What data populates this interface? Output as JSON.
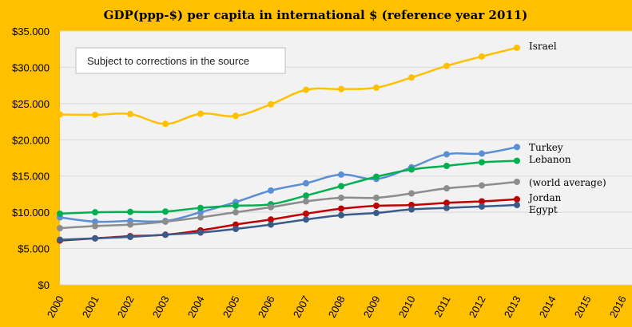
{
  "chart_data": {
    "type": "line",
    "title": "GDP(ppp-$) per capita in international $ (reference year 2011)",
    "annotation": "Subject to corrections  in the source",
    "x": [
      2000,
      2001,
      2002,
      2003,
      2004,
      2005,
      2006,
      2007,
      2008,
      2009,
      2010,
      2011,
      2012,
      2013
    ],
    "x_ticks": [
      "2000",
      "2001",
      "2002",
      "2003",
      "2004",
      "2005",
      "2006",
      "2007",
      "2008",
      "2009",
      "2010",
      "2011",
      "2012",
      "2013",
      "2014",
      "2015",
      "2016"
    ],
    "xlim": [
      2000,
      2016
    ],
    "ylim": [
      0,
      35000
    ],
    "y_ticks": [
      {
        "value": 0,
        "label": "$0"
      },
      {
        "value": 5000,
        "label": "$5.000"
      },
      {
        "value": 10000,
        "label": "$10.000"
      },
      {
        "value": 15000,
        "label": "$15.000"
      },
      {
        "value": 20000,
        "label": "$20.000"
      },
      {
        "value": 25000,
        "label": "$25.000"
      },
      {
        "value": 30000,
        "label": "$30.000"
      },
      {
        "value": 35000,
        "label": "$35.000"
      }
    ],
    "grid": "horizontal",
    "legend": "none",
    "series": [
      {
        "name": "Israel",
        "color": "#FFC000",
        "values": [
          23500,
          23450,
          23550,
          22200,
          23600,
          23300,
          24900,
          26900,
          27000,
          27200,
          28600,
          30200,
          31500,
          32700
        ]
      },
      {
        "name": "Turkey",
        "color": "#5B8FD5",
        "values": [
          9300,
          8700,
          8800,
          8800,
          10000,
          11400,
          13000,
          14000,
          15200,
          14600,
          16200,
          18000,
          18100,
          19000
        ]
      },
      {
        "name": "Lebanon",
        "color": "#00B050",
        "values": [
          9800,
          10000,
          10050,
          10100,
          10600,
          10900,
          11100,
          12300,
          13600,
          14900,
          15900,
          16400,
          16900,
          17100
        ]
      },
      {
        "name": "(world average)",
        "color": "#8C8C8C",
        "values": [
          7800,
          8100,
          8300,
          8700,
          9300,
          10000,
          10700,
          11500,
          12000,
          12000,
          12600,
          13300,
          13700,
          14200
        ]
      },
      {
        "name": "Jordan",
        "color": "#C00000",
        "values": [
          6100,
          6400,
          6700,
          6900,
          7500,
          8300,
          9000,
          9800,
          10500,
          10900,
          11000,
          11300,
          11500,
          11800
        ]
      },
      {
        "name": "Egypt",
        "color": "#3A5A8A",
        "values": [
          6200,
          6400,
          6600,
          6900,
          7200,
          7700,
          8300,
          9000,
          9600,
          9900,
          10400,
          10600,
          10800,
          11000
        ]
      }
    ]
  }
}
